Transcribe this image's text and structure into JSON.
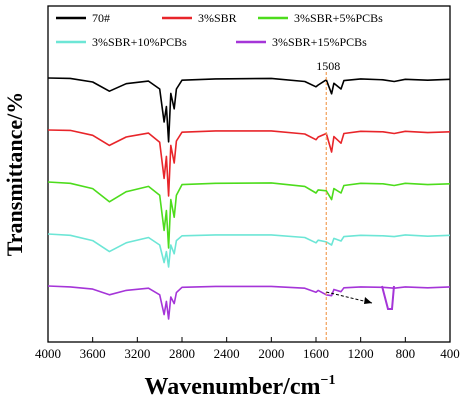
{
  "chart_data": {
    "type": "line",
    "xlabel": "Wavenumber/cm",
    "xlabel_sup": "−1",
    "ylabel": "Transmittance/%",
    "xlim": [
      4000,
      400
    ],
    "x_reversed": true,
    "x_ticks": [
      "4000",
      "3600",
      "3200",
      "2800",
      "2400",
      "2000",
      "1600",
      "1200",
      "800",
      "400"
    ],
    "y_ticks_shown": false,
    "grid": false,
    "legend_position": "top",
    "reference_line": {
      "x": 1508,
      "label": "1508",
      "style": "dashed",
      "color": "#f2a05a"
    },
    "inset_arrow_note": "magnified peak shape",
    "series": [
      {
        "name": "70#",
        "color": "#000000",
        "offset": 0.0,
        "points": [
          [
            4000,
            0.0
          ],
          [
            3800,
            0.1
          ],
          [
            3600,
            0.9
          ],
          [
            3450,
            3.0
          ],
          [
            3300,
            1.3
          ],
          [
            3100,
            0.7
          ],
          [
            3000,
            2.5
          ],
          [
            2960,
            10.0
          ],
          [
            2940,
            6.5
          ],
          [
            2920,
            14.5
          ],
          [
            2900,
            3.5
          ],
          [
            2870,
            7.0
          ],
          [
            2850,
            2.5
          ],
          [
            2800,
            0.5
          ],
          [
            2500,
            0.2
          ],
          [
            2000,
            0.1
          ],
          [
            1700,
            0.8
          ],
          [
            1600,
            2.0
          ],
          [
            1580,
            1.6
          ],
          [
            1508,
            0.4
          ],
          [
            1460,
            3.6
          ],
          [
            1440,
            1.2
          ],
          [
            1376,
            2.5
          ],
          [
            1350,
            0.6
          ],
          [
            1200,
            0.2
          ],
          [
            1000,
            0.4
          ],
          [
            900,
            0.8
          ],
          [
            800,
            0.3
          ],
          [
            600,
            0.5
          ],
          [
            400,
            0.3
          ]
        ]
      },
      {
        "name": "3%SBR",
        "color": "#e8252a",
        "offset": 1.0,
        "points": [
          [
            4000,
            0.0
          ],
          [
            3800,
            0.1
          ],
          [
            3600,
            1.2
          ],
          [
            3450,
            3.5
          ],
          [
            3300,
            1.6
          ],
          [
            3100,
            0.7
          ],
          [
            3000,
            2.8
          ],
          [
            2960,
            11.0
          ],
          [
            2940,
            6.0
          ],
          [
            2920,
            15.0
          ],
          [
            2900,
            3.5
          ],
          [
            2870,
            7.5
          ],
          [
            2850,
            2.5
          ],
          [
            2800,
            0.5
          ],
          [
            2500,
            0.2
          ],
          [
            2000,
            0.2
          ],
          [
            1700,
            0.9
          ],
          [
            1600,
            2.2
          ],
          [
            1580,
            1.6
          ],
          [
            1508,
            0.8
          ],
          [
            1460,
            5.0
          ],
          [
            1440,
            1.5
          ],
          [
            1376,
            3.0
          ],
          [
            1350,
            0.8
          ],
          [
            1200,
            0.3
          ],
          [
            1000,
            0.4
          ],
          [
            900,
            0.8
          ],
          [
            800,
            0.3
          ],
          [
            600,
            0.6
          ],
          [
            400,
            0.4
          ]
        ]
      },
      {
        "name": "3%SBR+5%PCBs",
        "color": "#4ddc1c",
        "offset": 2.0,
        "points": [
          [
            4000,
            0.0
          ],
          [
            3800,
            0.3
          ],
          [
            3600,
            1.5
          ],
          [
            3450,
            4.5
          ],
          [
            3300,
            2.2
          ],
          [
            3100,
            1.0
          ],
          [
            3000,
            3.0
          ],
          [
            2960,
            11.0
          ],
          [
            2940,
            6.5
          ],
          [
            2920,
            15.0
          ],
          [
            2900,
            4.0
          ],
          [
            2870,
            8.0
          ],
          [
            2850,
            3.0
          ],
          [
            2800,
            0.6
          ],
          [
            2500,
            0.3
          ],
          [
            2000,
            0.2
          ],
          [
            1700,
            1.0
          ],
          [
            1600,
            2.5
          ],
          [
            1580,
            1.8
          ],
          [
            1508,
            2.0
          ],
          [
            1460,
            4.0
          ],
          [
            1440,
            1.5
          ],
          [
            1376,
            2.5
          ],
          [
            1350,
            0.8
          ],
          [
            1200,
            0.3
          ],
          [
            1000,
            0.4
          ],
          [
            900,
            0.8
          ],
          [
            800,
            0.3
          ],
          [
            600,
            0.6
          ],
          [
            400,
            0.4
          ]
        ]
      },
      {
        "name": "3%SBR+10%PCBs",
        "color": "#6de6d6",
        "offset": 3.0,
        "points": [
          [
            4000,
            0.0
          ],
          [
            3800,
            0.3
          ],
          [
            3600,
            1.5
          ],
          [
            3450,
            4.0
          ],
          [
            3300,
            2.0
          ],
          [
            3100,
            0.8
          ],
          [
            3000,
            2.5
          ],
          [
            2960,
            6.5
          ],
          [
            2940,
            4.0
          ],
          [
            2920,
            7.5
          ],
          [
            2900,
            2.5
          ],
          [
            2870,
            4.5
          ],
          [
            2850,
            1.5
          ],
          [
            2800,
            0.4
          ],
          [
            2500,
            0.2
          ],
          [
            2000,
            0.2
          ],
          [
            1700,
            0.8
          ],
          [
            1600,
            2.0
          ],
          [
            1580,
            1.4
          ],
          [
            1508,
            1.8
          ],
          [
            1460,
            2.5
          ],
          [
            1440,
            1.0
          ],
          [
            1376,
            1.6
          ],
          [
            1350,
            0.6
          ],
          [
            1200,
            0.3
          ],
          [
            1000,
            0.4
          ],
          [
            900,
            0.6
          ],
          [
            800,
            0.2
          ],
          [
            600,
            0.5
          ],
          [
            400,
            0.3
          ]
        ]
      },
      {
        "name": "3%SBR+15%PCBs",
        "color": "#a535d8",
        "offset": 4.0,
        "points": [
          [
            4000,
            0.0
          ],
          [
            3800,
            0.2
          ],
          [
            3600,
            0.7
          ],
          [
            3450,
            2.0
          ],
          [
            3300,
            1.0
          ],
          [
            3100,
            0.5
          ],
          [
            3000,
            2.0
          ],
          [
            2960,
            6.5
          ],
          [
            2940,
            3.5
          ],
          [
            2920,
            7.5
          ],
          [
            2900,
            2.5
          ],
          [
            2870,
            4.0
          ],
          [
            2850,
            1.5
          ],
          [
            2800,
            0.3
          ],
          [
            2500,
            0.1
          ],
          [
            2000,
            0.1
          ],
          [
            1700,
            0.5
          ],
          [
            1600,
            1.4
          ],
          [
            1580,
            1.0
          ],
          [
            1508,
            2.0
          ],
          [
            1460,
            2.2
          ],
          [
            1440,
            0.8
          ],
          [
            1376,
            1.3
          ],
          [
            1350,
            0.4
          ],
          [
            1200,
            0.2
          ],
          [
            1000,
            0.3
          ],
          [
            900,
            0.5
          ],
          [
            800,
            0.2
          ],
          [
            600,
            0.4
          ],
          [
            400,
            0.2
          ]
        ]
      }
    ]
  }
}
